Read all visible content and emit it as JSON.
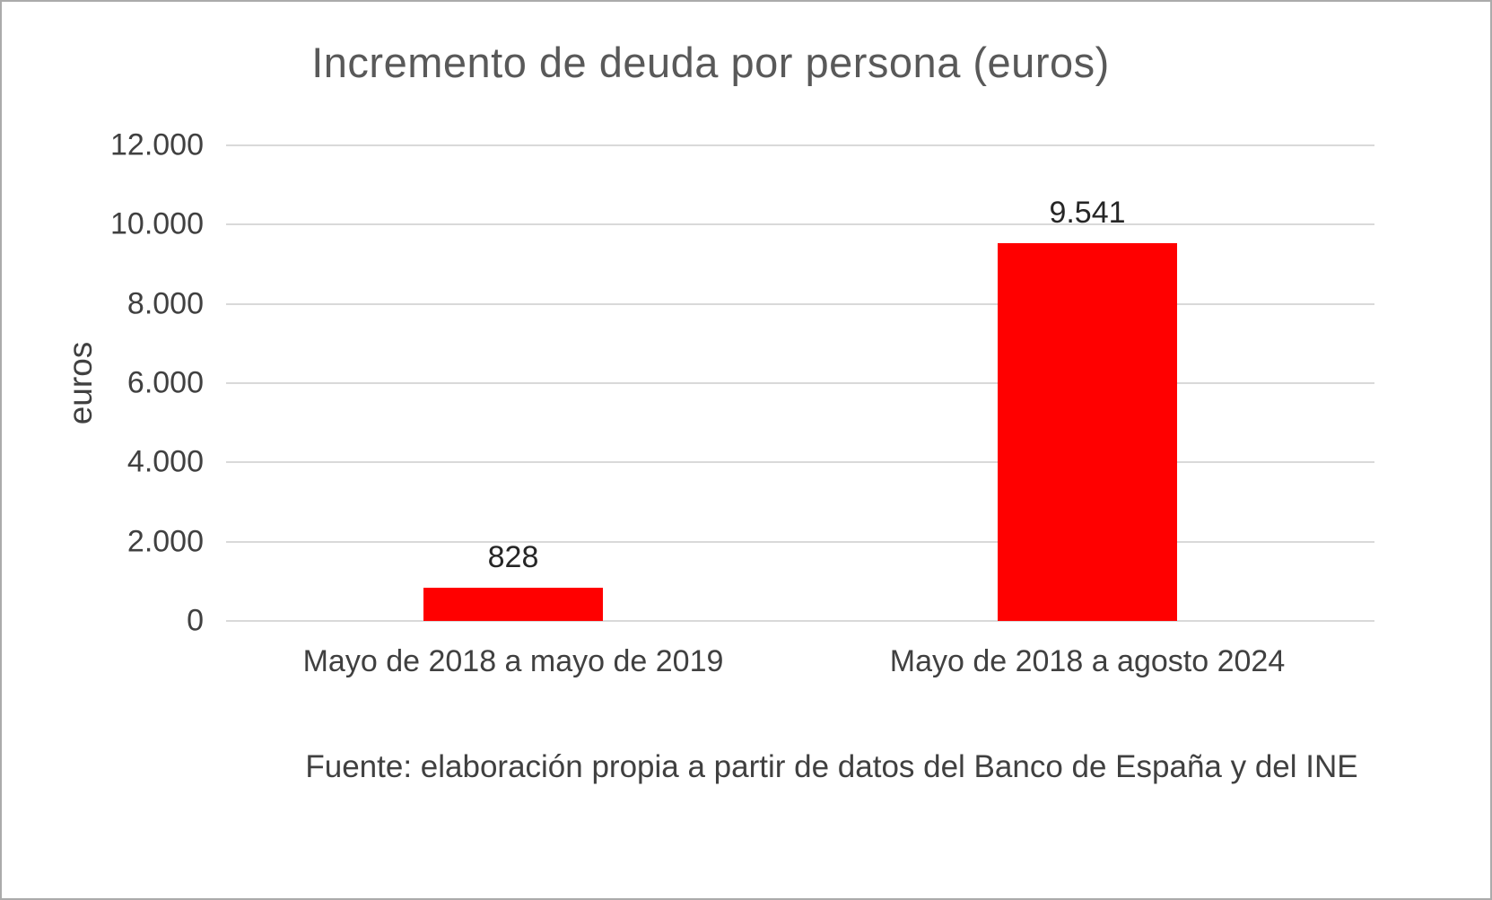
{
  "chart_data": {
    "type": "bar",
    "title": "Incremento de deuda por persona (euros)",
    "ylabel": "euros",
    "xlabel": "",
    "categories": [
      "Mayo de 2018 a mayo de 2019",
      "Mayo de 2018 a agosto 2024"
    ],
    "values": [
      828,
      9541
    ],
    "value_labels": [
      "828",
      "9.541"
    ],
    "ylim": [
      0,
      12000
    ],
    "yticks": [
      {
        "value": 0,
        "label": "0"
      },
      {
        "value": 2000,
        "label": "2.000"
      },
      {
        "value": 4000,
        "label": "4.000"
      },
      {
        "value": 6000,
        "label": "6.000"
      },
      {
        "value": 8000,
        "label": "8.000"
      },
      {
        "value": 10000,
        "label": "10.000"
      },
      {
        "value": 12000,
        "label": "12.000"
      }
    ],
    "grid": true,
    "legend": false,
    "bar_color": "#FF0000",
    "grid_color": "#D9D9D9",
    "text_color": "#404040",
    "source": "Fuente: elaboración propia a partir de datos del Banco de España y del INE"
  }
}
